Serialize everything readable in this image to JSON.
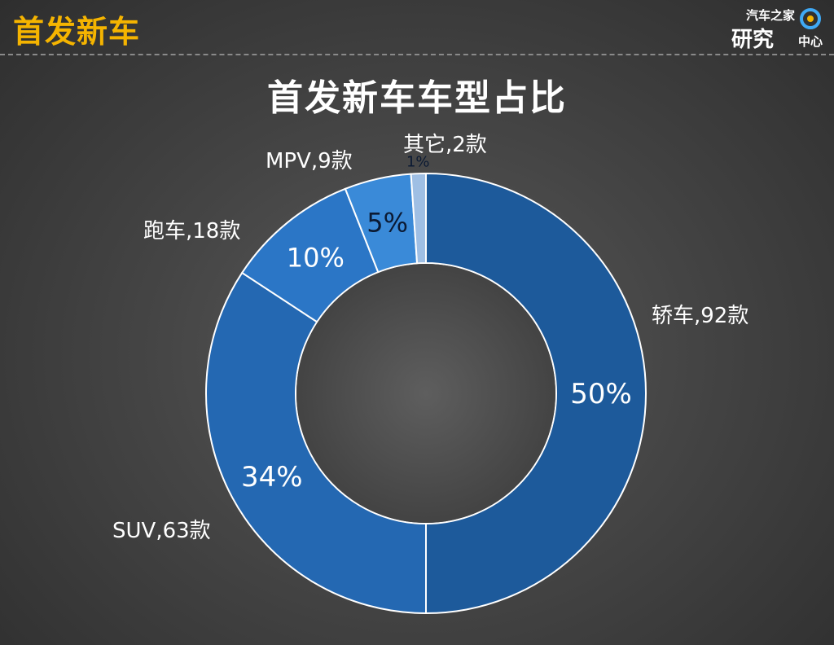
{
  "header": {
    "title": "首发新车"
  },
  "logo": {
    "line1": "汽车之家",
    "line2": "研究",
    "line3": "中心"
  },
  "chart_data": {
    "type": "pie",
    "variant": "donut",
    "title": "首发新车车型占比",
    "slices": [
      {
        "name": "轿车",
        "count": 92,
        "label": "轿车,92款",
        "percent": 50,
        "percent_label": "50%",
        "color": "#1d5a9b"
      },
      {
        "name": "SUV",
        "count": 63,
        "label": "SUV,63款",
        "percent": 34,
        "percent_label": "34%",
        "color": "#2468b2"
      },
      {
        "name": "跑车",
        "count": 18,
        "label": "跑车,18款",
        "percent": 10,
        "percent_label": "10%",
        "color": "#2b76c6"
      },
      {
        "name": "MPV",
        "count": 9,
        "label": "MPV,9款",
        "percent": 5,
        "percent_label": "5%",
        "color": "#3a8ad8"
      },
      {
        "name": "其它",
        "count": 2,
        "label": "其它,2款",
        "percent": 1,
        "percent_label": "1%",
        "color": "#9fbfe4"
      }
    ],
    "legend": "none"
  }
}
